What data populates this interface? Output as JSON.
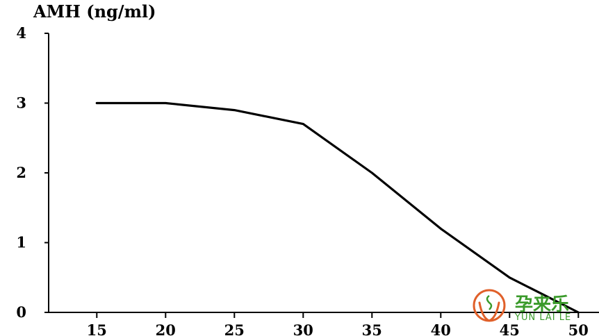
{
  "chart_data": {
    "type": "line",
    "title": "",
    "xlabel": "",
    "ylabel": "AMH (ng/ml)",
    "x": [
      15,
      20,
      25,
      30,
      35,
      40,
      45,
      50
    ],
    "series": [
      {
        "values": [
          3.0,
          3.0,
          2.9,
          2.7,
          2.0,
          1.2,
          0.5,
          0.0
        ]
      }
    ],
    "xlim": [
      11.5,
      51.5
    ],
    "ylim": [
      0,
      4
    ],
    "xticks": [
      15,
      20,
      25,
      30,
      35,
      40,
      45,
      50
    ],
    "yticks": [
      0,
      1,
      2,
      3,
      4
    ],
    "grid": false,
    "legend": "none"
  },
  "watermark": {
    "chinese": "孕来乐",
    "english": "YUN LAI LE",
    "color": "#3a9a2a",
    "icon_color": "#e0602a",
    "icon": "hands-cradling-baby-icon"
  }
}
